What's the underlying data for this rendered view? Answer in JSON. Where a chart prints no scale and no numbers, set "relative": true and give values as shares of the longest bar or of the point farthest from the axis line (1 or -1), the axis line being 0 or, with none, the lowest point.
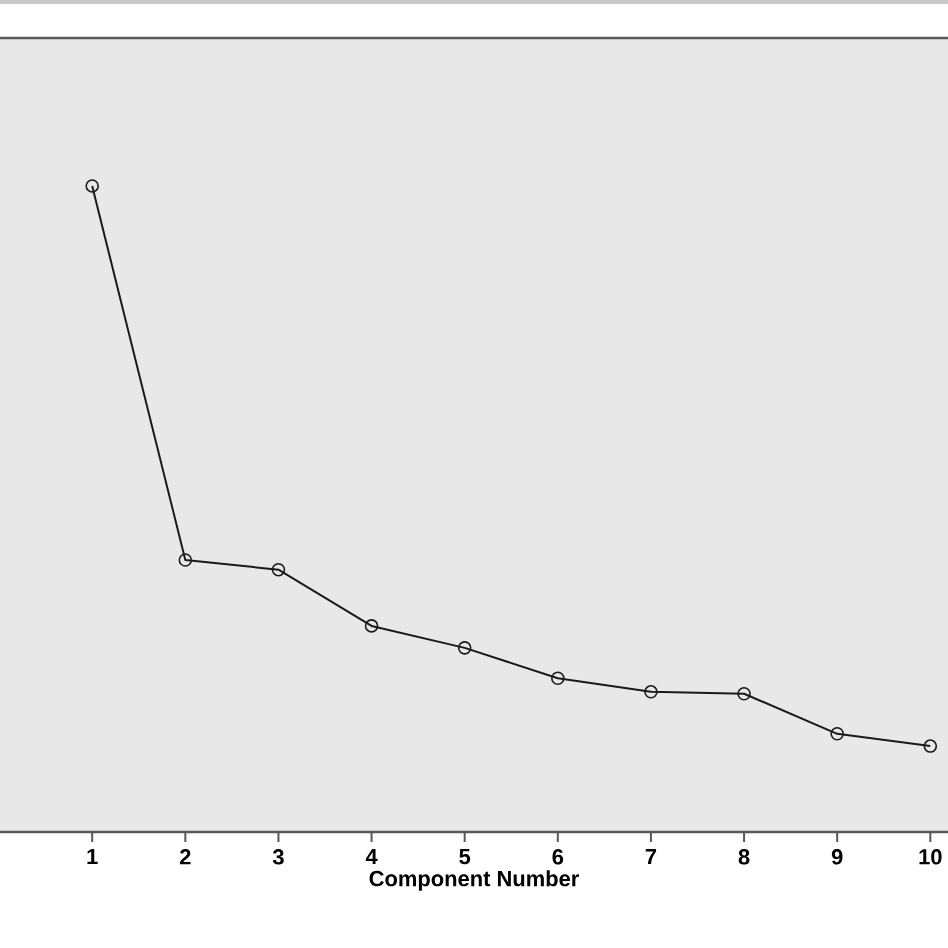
{
  "chart_data": {
    "type": "line",
    "xlabel": "Component Number",
    "relative": true,
    "marker": "circle",
    "line_style": "solid",
    "categories": [
      "1",
      "2",
      "3",
      "4",
      "5",
      "6",
      "7",
      "8",
      "9",
      "10"
    ],
    "series": [
      {
        "color": "#1a1a1a",
        "values": [
          1,
          0.421,
          0.406,
          0.319,
          0.285,
          0.238,
          0.217,
          0.214,
          0.152,
          0.133
        ]
      }
    ]
  }
}
